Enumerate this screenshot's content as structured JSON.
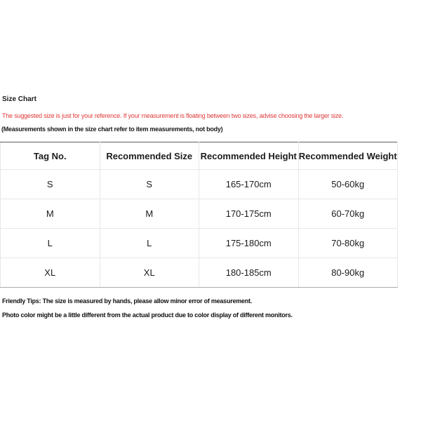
{
  "page": {
    "title": "Size Chart",
    "reference_note": "The suggested size is just for your reference. If your measurement is floating between two sizes, advise choosing the larger size.",
    "measurement_note": "(Measurements shown in the size chart refer to item measurements, not body)",
    "friendly_tips": "Friendly Tips: The size is measured by hands, please allow minor error of measurement.",
    "monitor_note": "Photo color might be a little different from the actual product due to color display of different monitors."
  },
  "colors": {
    "note_red": "#e03a3a",
    "text": "#1a1a1a",
    "table_border_light": "#e7e7e7",
    "table_border_top": "#5f5f5f",
    "table_border_bottom": "#ababab",
    "background": "#ffffff"
  },
  "chart_data": {
    "type": "table",
    "title": "Size Chart",
    "columns": [
      "Tag No.",
      "Recommended Size",
      "Recommended Height",
      "Recommended Weight"
    ],
    "rows": [
      [
        "S",
        "S",
        "165-170cm",
        "50-60kg"
      ],
      [
        "M",
        "M",
        "170-175cm",
        "60-70kg"
      ],
      [
        "L",
        "L",
        "175-180cm",
        "70-80kg"
      ],
      [
        "XL",
        "XL",
        "180-185cm",
        "80-90kg"
      ]
    ]
  }
}
